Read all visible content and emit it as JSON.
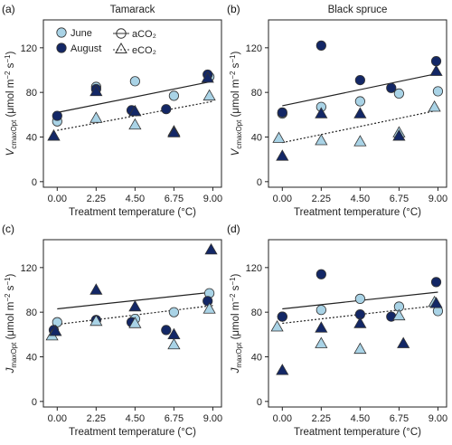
{
  "colors": {
    "june": "#a9d3e6",
    "august": "#132766",
    "edge": "#333333",
    "line": "#222222"
  },
  "legend": {
    "june": "June",
    "august": "August",
    "aco2": "aCO₂",
    "eco2": "eCO₂",
    "placement": "top-left of panel (a)"
  },
  "chart_data": [
    {
      "type": "scatter",
      "panel_label": "(a)",
      "title": "Tamarack",
      "xlabel": "Treatment temperature (°C)",
      "ylabel": "V_cmaxOpt (μmol m⁻² s⁻¹)",
      "xticks": [
        "0.00",
        "2.25",
        "4.50",
        "6.75",
        "9.00"
      ],
      "yticks": [
        0,
        40,
        80,
        120
      ],
      "xlim": [
        -0.8,
        9.5
      ],
      "ylim": [
        -5,
        145
      ],
      "series": [
        {
          "name": "June aCO2",
          "x": [
            0.0,
            2.25,
            4.5,
            6.75,
            8.8
          ],
          "y": [
            54,
            85,
            90,
            77,
            94
          ]
        },
        {
          "name": "August aCO2",
          "x": [
            0.0,
            2.25,
            4.3,
            6.3,
            8.7
          ],
          "y": [
            59,
            83,
            64,
            65,
            96
          ]
        },
        {
          "name": "June eCO2",
          "x": [
            -0.2,
            2.25,
            4.5,
            6.75,
            8.8
          ],
          "y": [
            41,
            57,
            51,
            45,
            77
          ]
        },
        {
          "name": "August eCO2",
          "x": [
            -0.2,
            2.25,
            4.5,
            6.75,
            8.7
          ],
          "y": [
            41,
            81,
            63,
            44,
            93
          ]
        }
      ],
      "fits": {
        "aCO2": {
          "x": [
            0,
            9
          ],
          "y": [
            62,
            90
          ]
        },
        "eCO2": {
          "x": [
            0,
            9
          ],
          "y": [
            46,
            72
          ]
        }
      }
    },
    {
      "type": "scatter",
      "panel_label": "(b)",
      "title": "Black spruce",
      "xlabel": "Treatment temperature (°C)",
      "ylabel": "V_cmaxOpt (μmol m⁻² s⁻¹)",
      "xticks": [
        "0.00",
        "2.25",
        "4.50",
        "6.75",
        "9.00"
      ],
      "yticks": [
        0,
        40,
        80,
        120
      ],
      "xlim": [
        -0.8,
        9.5
      ],
      "ylim": [
        -5,
        145
      ],
      "series": [
        {
          "name": "June aCO2",
          "x": [
            0.0,
            2.25,
            4.5,
            6.75,
            9.0
          ],
          "y": [
            61,
            67,
            72,
            79,
            81
          ]
        },
        {
          "name": "August aCO2",
          "x": [
            0.0,
            2.25,
            4.5,
            6.3,
            8.9
          ],
          "y": [
            62,
            122,
            91,
            84,
            108
          ]
        },
        {
          "name": "June eCO2",
          "x": [
            -0.2,
            2.25,
            4.5,
            6.75,
            8.8
          ],
          "y": [
            39,
            37,
            36,
            44,
            67
          ]
        },
        {
          "name": "August eCO2",
          "x": [
            0.0,
            2.25,
            4.5,
            6.75,
            8.9
          ],
          "y": [
            23,
            61,
            61,
            41,
            99
          ]
        }
      ],
      "fits": {
        "aCO2": {
          "x": [
            0,
            9
          ],
          "y": [
            68,
            97
          ]
        },
        "eCO2": {
          "x": [
            0,
            9
          ],
          "y": [
            35,
            64
          ]
        }
      }
    },
    {
      "type": "scatter",
      "panel_label": "(c)",
      "title": "",
      "xlabel": "Treatment temperature (°C)",
      "ylabel": "J_maxOpt (μmol m⁻² s⁻¹)",
      "xticks": [
        "0.00",
        "2.25",
        "4.50",
        "6.75",
        "9.00"
      ],
      "yticks": [
        0,
        40,
        80,
        120
      ],
      "xlim": [
        -0.8,
        9.5
      ],
      "ylim": [
        -5,
        145
      ],
      "series": [
        {
          "name": "June aCO2",
          "x": [
            0.0,
            2.25,
            4.5,
            6.75,
            8.8
          ],
          "y": [
            71,
            73,
            74,
            80,
            97
          ]
        },
        {
          "name": "August aCO2",
          "x": [
            -0.2,
            2.25,
            4.3,
            6.3,
            8.7
          ],
          "y": [
            64,
            73,
            71,
            64,
            90
          ]
        },
        {
          "name": "June eCO2",
          "x": [
            -0.3,
            2.25,
            4.5,
            6.75,
            8.8
          ],
          "y": [
            59,
            72,
            70,
            51,
            83
          ]
        },
        {
          "name": "August eCO2",
          "x": [
            -0.1,
            2.25,
            4.5,
            6.75,
            8.9
          ],
          "y": [
            63,
            100,
            85,
            60,
            136
          ]
        }
      ],
      "fits": {
        "aCO2": {
          "x": [
            0,
            9
          ],
          "y": [
            83,
            98
          ]
        },
        "eCO2": {
          "x": [
            0,
            9
          ],
          "y": [
            69,
            86
          ]
        }
      }
    },
    {
      "type": "scatter",
      "panel_label": "(d)",
      "title": "",
      "xlabel": "Treatment temperature (°C)",
      "ylabel": "J_maxOpt (μmol m⁻² s⁻¹)",
      "xticks": [
        "0.00",
        "2.25",
        "4.50",
        "6.75",
        "9.00"
      ],
      "yticks": [
        0,
        40,
        80,
        120
      ],
      "xlim": [
        -0.8,
        9.5
      ],
      "ylim": [
        -5,
        145
      ],
      "series": [
        {
          "name": "June aCO2",
          "x": [
            0.0,
            2.25,
            4.5,
            6.75,
            9.0
          ],
          "y": [
            76,
            82,
            92,
            85,
            81
          ]
        },
        {
          "name": "August aCO2",
          "x": [
            0.0,
            2.25,
            4.5,
            6.3,
            8.9
          ],
          "y": [
            76,
            114,
            78,
            76,
            107
          ]
        },
        {
          "name": "June eCO2",
          "x": [
            -0.3,
            2.25,
            4.5,
            6.75,
            8.8
          ],
          "y": [
            67,
            52,
            47,
            77,
            89
          ]
        },
        {
          "name": "August eCO2",
          "x": [
            0.0,
            2.25,
            4.5,
            7.0,
            8.9
          ],
          "y": [
            28,
            66,
            70,
            52,
            88
          ]
        }
      ],
      "fits": {
        "aCO2": {
          "x": [
            0,
            9
          ],
          "y": [
            83,
            98
          ]
        },
        "eCO2": {
          "x": [
            0,
            9
          ],
          "y": [
            70,
            86
          ]
        }
      }
    }
  ]
}
